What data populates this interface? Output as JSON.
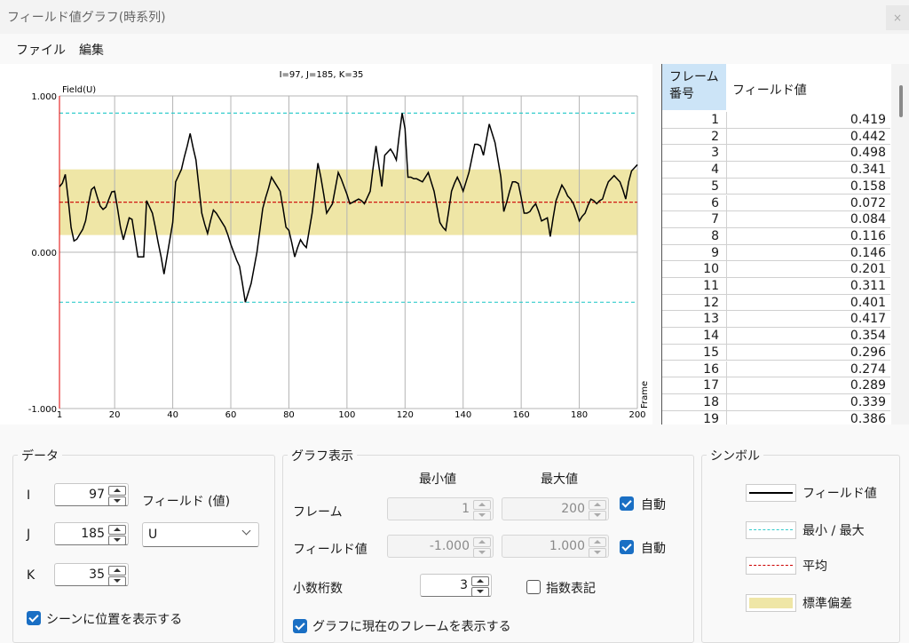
{
  "window": {
    "title": "フィールド値グラフ(時系列)",
    "close": "×"
  },
  "menu": [
    "ファイル",
    "編集"
  ],
  "chart_data": {
    "type": "line",
    "subtitle": "I=97, J=185, K=35",
    "ylabel": "Field(U)",
    "xlabel": "Frame",
    "x": [
      1,
      2,
      3,
      4,
      5,
      6,
      7,
      8,
      9,
      10,
      11,
      12,
      13,
      14,
      15,
      16,
      17,
      18,
      19,
      20,
      21,
      22,
      23,
      24,
      25,
      26,
      27,
      28,
      29,
      30,
      31,
      32,
      33,
      34,
      35,
      36,
      37,
      38,
      39,
      40,
      41,
      42,
      43,
      44,
      45,
      46,
      47,
      48,
      49,
      50,
      51,
      52,
      53,
      54,
      55,
      56,
      57,
      58,
      59,
      60,
      61,
      62,
      63,
      64,
      65,
      66,
      67,
      68,
      69,
      70,
      71,
      72,
      73,
      74,
      75,
      76,
      77,
      78,
      79,
      80,
      81,
      82,
      83,
      84,
      85,
      86,
      87,
      88,
      89,
      90,
      91,
      92,
      93,
      94,
      95,
      96,
      97,
      98,
      99,
      100,
      101,
      102,
      103,
      104,
      105,
      106,
      107,
      108,
      109,
      110,
      111,
      112,
      113,
      114,
      115,
      116,
      117,
      118,
      119,
      120,
      121,
      122,
      123,
      124,
      125,
      126,
      127,
      128,
      129,
      130,
      131,
      132,
      133,
      134,
      135,
      136,
      137,
      138,
      139,
      140,
      141,
      142,
      143,
      144,
      145,
      146,
      147,
      148,
      149,
      150,
      151,
      152,
      153,
      154,
      155,
      156,
      157,
      158,
      159,
      160,
      161,
      162,
      163,
      164,
      165,
      166,
      167,
      168,
      169,
      170,
      171,
      172,
      173,
      174,
      175,
      176,
      177,
      178,
      179,
      180,
      181,
      182,
      183,
      184,
      185,
      186,
      187,
      188,
      189,
      190,
      191,
      192,
      193,
      194,
      195,
      196,
      197,
      198,
      199,
      200
    ],
    "series": [
      {
        "name": "フィールド値",
        "color": "#000000",
        "values": [
          0.419,
          0.442,
          0.498,
          0.341,
          0.158,
          0.072,
          0.084,
          0.116,
          0.146,
          0.201,
          0.311,
          0.401,
          0.417,
          0.354,
          0.296,
          0.274,
          0.289,
          0.339,
          0.386,
          0.39,
          0.28,
          0.16,
          0.08,
          0.15,
          0.22,
          0.21,
          0.09,
          -0.03,
          -0.03,
          -0.03,
          0.33,
          0.29,
          0.25,
          0.16,
          0.06,
          -0.03,
          -0.14,
          -0.03,
          0.08,
          0.19,
          0.45,
          0.49,
          0.53,
          0.61,
          0.68,
          0.76,
          0.67,
          0.59,
          0.42,
          0.25,
          0.18,
          0.12,
          0.2,
          0.27,
          0.25,
          0.22,
          0.19,
          0.16,
          0.11,
          0.05,
          0,
          -0.05,
          -0.09,
          -0.2,
          -0.32,
          -0.26,
          -0.2,
          -0.1,
          0,
          0.14,
          0.28,
          0.35,
          0.41,
          0.48,
          0.45,
          0.42,
          0.39,
          0.28,
          0.16,
          0.14,
          0.06,
          -0.03,
          0.03,
          0.08,
          0.05,
          0.03,
          0.14,
          0.25,
          0.41,
          0.57,
          0.48,
          0.37,
          0.25,
          0.28,
          0.31,
          0.41,
          0.51,
          0.47,
          0.42,
          0.37,
          0.31,
          0.32,
          0.33,
          0.34,
          0.33,
          0.31,
          0.35,
          0.39,
          0.54,
          0.68,
          0.55,
          0.42,
          0.62,
          0.64,
          0.66,
          0.63,
          0.59,
          0.75,
          0.89,
          0.79,
          0.48,
          0.48,
          0.47,
          0.47,
          0.46,
          0.45,
          0.48,
          0.51,
          0.45,
          0.39,
          0.29,
          0.19,
          0.16,
          0.14,
          0.26,
          0.39,
          0.44,
          0.48,
          0.44,
          0.39,
          0.45,
          0.51,
          0.6,
          0.69,
          0.69,
          0.68,
          0.62,
          0.72,
          0.82,
          0.76,
          0.7,
          0.59,
          0.48,
          0.26,
          0.32,
          0.39,
          0.45,
          0.45,
          0.44,
          0.35,
          0.25,
          0.25,
          0.26,
          0.29,
          0.31,
          0.26,
          0.2,
          0.21,
          0.22,
          0.1,
          0.22,
          0.33,
          0.38,
          0.43,
          0.4,
          0.36,
          0.34,
          0.31,
          0.26,
          0.2,
          0.23,
          0.25,
          0.3,
          0.34,
          0.33,
          0.31,
          0.33,
          0.34,
          0.4,
          0.45,
          0.47,
          0.49,
          0.47,
          0.45,
          0.4,
          0.34,
          0.45,
          0.52,
          0.54,
          0.56
        ]
      }
    ],
    "mean": 0.32,
    "mean_color": "#cc0000",
    "std_band": [
      0.11,
      0.53
    ],
    "band_color": "#efe6a6",
    "min": -0.32,
    "max": 0.89,
    "minmax_color": "#33cccc",
    "xlim": [
      1,
      200
    ],
    "ylim": [
      -1,
      1
    ],
    "xticks": [
      1,
      20,
      40,
      60,
      80,
      100,
      120,
      140,
      160,
      180,
      200
    ],
    "yticks": [
      {
        "value": 1,
        "label": "1.000"
      },
      {
        "value": 0,
        "label": "0.000"
      },
      {
        "value": -1,
        "label": "-1.000"
      }
    ],
    "grid": true
  },
  "table": {
    "headers": [
      "フレーム\n番号",
      "フィールド値"
    ],
    "rows": [
      [
        1,
        0.419
      ],
      [
        2,
        0.442
      ],
      [
        3,
        0.498
      ],
      [
        4,
        0.341
      ],
      [
        5,
        0.158
      ],
      [
        6,
        0.072
      ],
      [
        7,
        0.084
      ],
      [
        8,
        0.116
      ],
      [
        9,
        0.146
      ],
      [
        10,
        0.201
      ],
      [
        11,
        0.311
      ],
      [
        12,
        0.401
      ],
      [
        13,
        0.417
      ],
      [
        14,
        0.354
      ],
      [
        15,
        0.296
      ],
      [
        16,
        0.274
      ],
      [
        17,
        0.289
      ],
      [
        18,
        0.339
      ],
      [
        19,
        0.386
      ]
    ]
  },
  "data_panel": {
    "title": "データ",
    "i_label": "I",
    "i_value": 97,
    "j_label": "J",
    "j_value": 185,
    "k_label": "K",
    "k_value": 35,
    "field_label": "フィールド (値)",
    "field_select": "U",
    "show_in_scene": {
      "label": "シーンに位置を表示する",
      "checked": true
    }
  },
  "graph_panel": {
    "title": "グラフ表示",
    "min_header": "最小値",
    "max_header": "最大値",
    "frame": {
      "label": "フレーム",
      "min": 1,
      "max": 200,
      "auto": {
        "label": "自動",
        "checked": true
      }
    },
    "field": {
      "label": "フィールド値",
      "min": "-1.000",
      "max": "1.000",
      "auto": {
        "label": "自動",
        "checked": true
      }
    },
    "decimals": {
      "label": "小数桁数",
      "value": 3
    },
    "exponent": {
      "label": "指数表記",
      "checked": false
    },
    "show_frame": {
      "label": "グラフに現在のフレームを表示する",
      "checked": true
    }
  },
  "symbol_panel": {
    "title": "シンボル",
    "items": [
      "最小 / 最大",
      "平均",
      "標準偏差"
    ]
  }
}
